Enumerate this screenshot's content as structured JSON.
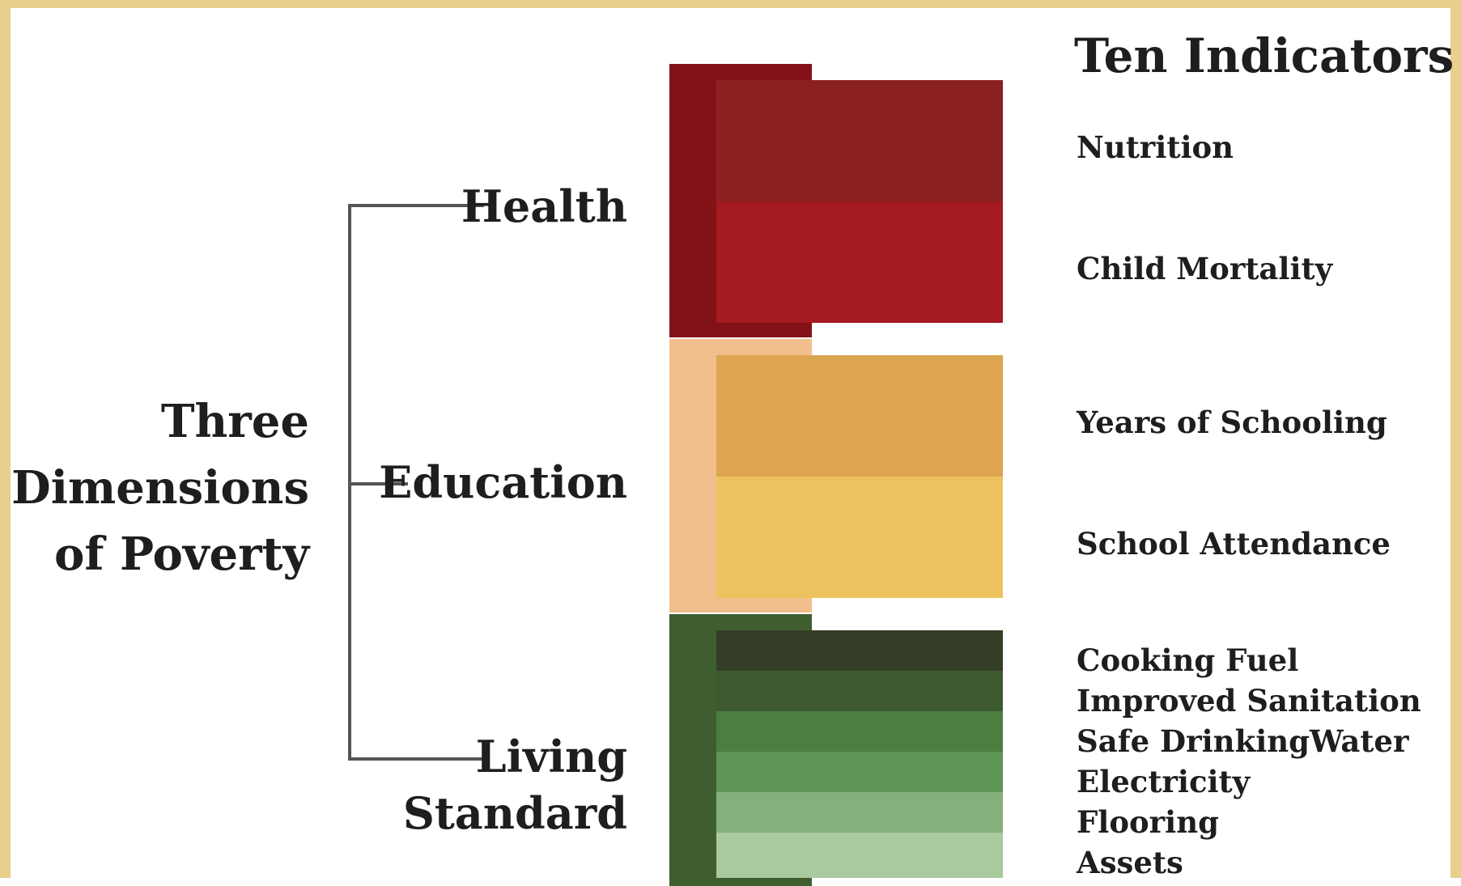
{
  "title": "Ten Indicators",
  "root": {
    "lines": [
      "Three",
      "Dimensions",
      "of Poverty"
    ]
  },
  "dimensions": [
    {
      "label_lines": [
        "Health"
      ],
      "colors": {
        "outer": "#831218",
        "band": [
          "#8a2021",
          "#a31a20"
        ]
      },
      "indicators": [
        "Nutrition",
        "Child Mortality"
      ]
    },
    {
      "label_lines": [
        "Education"
      ],
      "colors": {
        "outer": "#f1bf8d",
        "band": [
          "#dea550",
          "#ecc25e"
        ]
      },
      "indicators": [
        "Years of Schooling",
        "School Attendance"
      ]
    },
    {
      "label_lines": [
        "Living",
        "Standard"
      ],
      "colors": {
        "outer": "#3f5e30",
        "band": [
          "#343d26",
          "#3e5a30",
          "#4b7e3f",
          "#5e9454",
          "#84b07c",
          "#a9c99e"
        ]
      },
      "indicators": [
        "Cooking Fuel",
        "Improved Sanitation",
        "Safe DrinkingWater",
        "Electricity",
        "Flooring",
        "Assets"
      ]
    }
  ]
}
